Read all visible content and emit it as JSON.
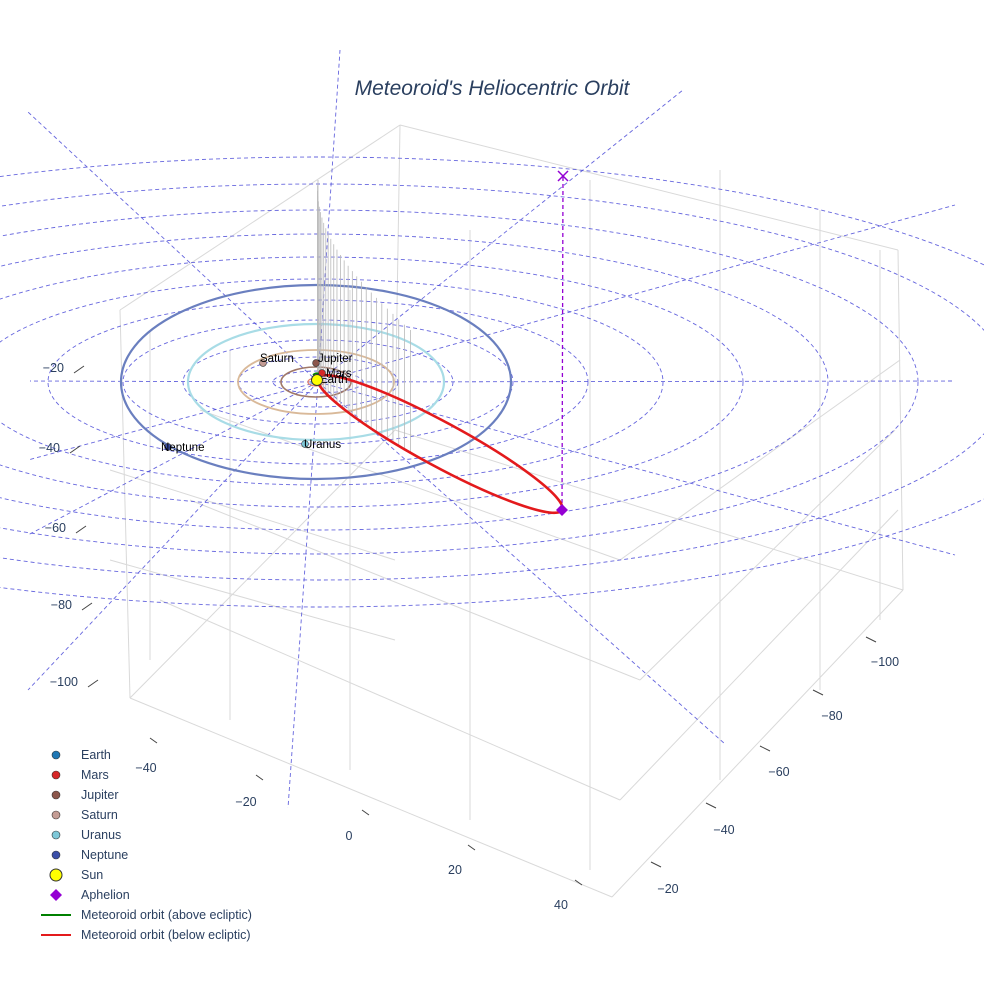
{
  "chart_data": {
    "type": "scatter3d",
    "title": "Meteoroid's Heliocentric Orbit",
    "axis_ticks": {
      "z_axis": [
        "−20",
        "−40",
        "−60",
        "−80",
        "−100"
      ],
      "x_axis": [
        "−40",
        "−20",
        "0",
        "20",
        "40"
      ],
      "y_axis": [
        "−100",
        "−80",
        "−60",
        "−40",
        "−20"
      ]
    },
    "planets": [
      {
        "name": "Earth",
        "color": "#1f77b4"
      },
      {
        "name": "Mars",
        "color": "#d62728"
      },
      {
        "name": "Jupiter",
        "color": "#8c564b"
      },
      {
        "name": "Saturn",
        "color": "#c49c94"
      },
      {
        "name": "Uranus",
        "color": "#7ec8d8"
      },
      {
        "name": "Neptune",
        "color": "#3b4fa8"
      }
    ],
    "orbit_colors": {
      "Neptune": "#6a7fbf",
      "Uranus": "#a8dce6",
      "Saturn": "#d9b999",
      "Jupiter": "#a07868",
      "Mars": "#e8826a",
      "Earth": "#6fa8dc"
    },
    "sun": {
      "name": "Sun",
      "color": "#ffff00"
    },
    "aphelion": {
      "name": "Aphelion",
      "color": "#9400d3"
    },
    "meteoroid_orbit": {
      "above_label": "Meteoroid orbit (above ecliptic)",
      "above_color": "#008000",
      "below_label": "Meteoroid orbit (below ecliptic)",
      "below_color": "#e31a1c"
    },
    "grid": true,
    "reference_grid_color": "#4b4bd8",
    "legend": {
      "placement": "bottom-left",
      "entries": [
        {
          "label": "Earth",
          "symbol": "circle",
          "color": "#1f77b4"
        },
        {
          "label": "Mars",
          "symbol": "circle",
          "color": "#d62728"
        },
        {
          "label": "Jupiter",
          "symbol": "circle",
          "color": "#8c564b"
        },
        {
          "label": "Saturn",
          "symbol": "circle",
          "color": "#c49c94"
        },
        {
          "label": "Uranus",
          "symbol": "circle",
          "color": "#7ec8d8"
        },
        {
          "label": "Neptune",
          "symbol": "circle",
          "color": "#3b4fa8"
        },
        {
          "label": "Sun",
          "symbol": "big-circle",
          "color": "#ffff00"
        },
        {
          "label": "Aphelion",
          "symbol": "diamond",
          "color": "#9400d3"
        },
        {
          "label": "Meteoroid orbit (above ecliptic)",
          "symbol": "line",
          "color": "#008000"
        },
        {
          "label": "Meteoroid orbit (below ecliptic)",
          "symbol": "line",
          "color": "#e31a1c"
        }
      ]
    }
  }
}
